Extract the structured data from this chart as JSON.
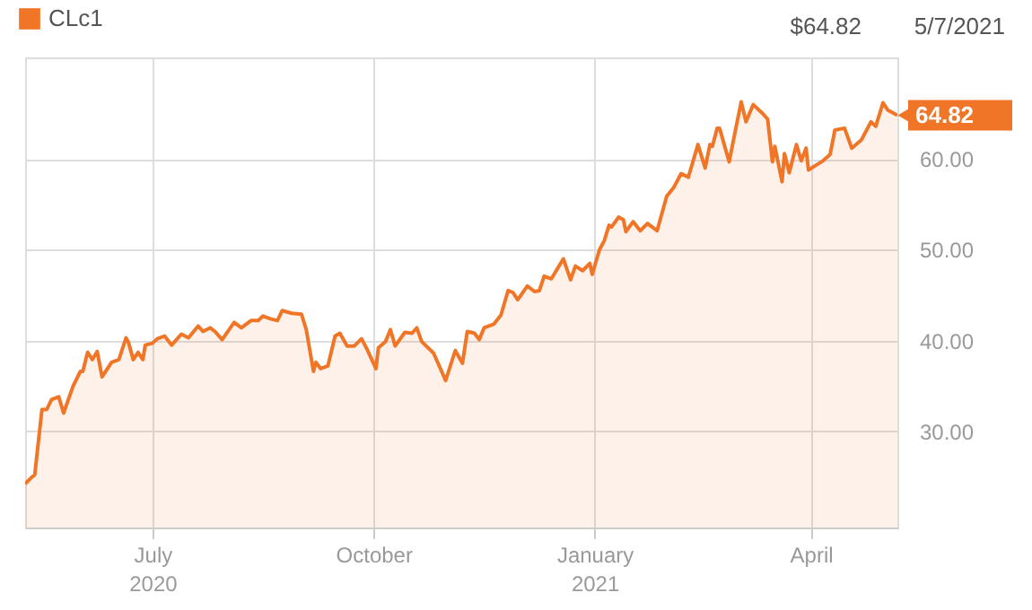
{
  "chart_data": {
    "type": "area",
    "x": [
      "2020-05-09",
      "2020-05-12",
      "2020-05-13",
      "2020-05-16",
      "2020-05-18",
      "2020-05-20",
      "2020-05-23",
      "2020-05-25",
      "2020-05-29",
      "2020-06-01",
      "2020-06-02",
      "2020-06-04",
      "2020-06-06",
      "2020-06-08",
      "2020-06-10",
      "2020-06-14",
      "2020-06-17",
      "2020-06-20",
      "2020-06-21",
      "2020-06-23",
      "2020-06-25",
      "2020-06-27",
      "2020-06-28",
      "2020-07-01",
      "2020-07-03",
      "2020-07-06",
      "2020-07-09",
      "2020-07-13",
      "2020-07-16",
      "2020-07-20",
      "2020-07-22",
      "2020-07-25",
      "2020-07-27",
      "2020-07-30",
      "2020-08-04",
      "2020-08-07",
      "2020-08-11",
      "2020-08-14",
      "2020-08-16",
      "2020-08-19",
      "2020-08-22",
      "2020-08-24",
      "2020-08-28",
      "2020-09-01",
      "2020-09-03",
      "2020-09-06",
      "2020-09-07",
      "2020-09-09",
      "2020-09-12",
      "2020-09-15",
      "2020-09-17",
      "2020-09-20",
      "2020-09-23",
      "2020-09-26",
      "2020-09-28",
      "2020-10-02",
      "2020-10-03",
      "2020-10-06",
      "2020-10-08",
      "2020-10-10",
      "2020-10-14",
      "2020-10-17",
      "2020-10-19",
      "2020-10-21",
      "2020-10-26",
      "2020-10-31",
      "2020-11-04",
      "2020-11-07",
      "2020-11-09",
      "2020-11-12",
      "2020-11-14",
      "2020-11-16",
      "2020-11-20",
      "2020-11-23",
      "2020-11-26",
      "2020-11-28",
      "2020-11-30",
      "2020-12-04",
      "2020-12-07",
      "2020-12-09",
      "2020-12-11",
      "2020-12-14",
      "2020-12-19",
      "2020-12-22",
      "2020-12-24",
      "2020-12-27",
      "2020-12-30",
      "2020-12-31",
      "2021-01-03",
      "2021-01-05",
      "2021-01-07",
      "2021-01-08",
      "2021-01-11",
      "2021-01-13",
      "2021-01-14",
      "2021-01-17",
      "2021-01-20",
      "2021-01-23",
      "2021-01-27",
      "2021-01-31",
      "2021-02-03",
      "2021-02-06",
      "2021-02-09",
      "2021-02-11",
      "2021-02-13",
      "2021-02-16",
      "2021-02-18",
      "2021-02-19",
      "2021-02-21",
      "2021-02-22",
      "2021-02-26",
      "2021-02-28",
      "2021-03-03",
      "2021-03-05",
      "2021-03-08",
      "2021-03-12",
      "2021-03-14",
      "2021-03-16",
      "2021-03-17",
      "2021-03-20",
      "2021-03-21",
      "2021-03-23",
      "2021-03-26",
      "2021-03-28",
      "2021-03-30",
      "2021-03-31",
      "2021-04-03",
      "2021-04-06",
      "2021-04-09",
      "2021-04-11",
      "2021-04-15",
      "2021-04-18",
      "2021-04-22",
      "2021-04-26",
      "2021-04-28",
      "2021-05-01",
      "2021-05-03",
      "2021-05-07"
    ],
    "series": [
      {
        "name": "CLc1",
        "color": "#f07527",
        "values": [
          24.2,
          25.0,
          25.2,
          32.4,
          32.4,
          33.5,
          33.8,
          32.0,
          35.0,
          36.6,
          36.6,
          38.7,
          37.9,
          38.8,
          36.0,
          37.6,
          37.9,
          40.3,
          39.8,
          37.9,
          38.7,
          37.9,
          39.5,
          39.7,
          40.2,
          40.5,
          39.5,
          40.7,
          40.3,
          41.6,
          41.0,
          41.4,
          41.0,
          40.1,
          42.0,
          41.4,
          42.2,
          42.2,
          42.7,
          42.4,
          42.2,
          43.3,
          43.0,
          42.9,
          41.2,
          36.6,
          37.6,
          36.9,
          37.2,
          40.5,
          40.8,
          39.4,
          39.4,
          40.2,
          39.2,
          36.9,
          39.2,
          39.9,
          41.2,
          39.4,
          40.9,
          40.8,
          41.4,
          39.9,
          38.6,
          35.6,
          38.9,
          37.5,
          41.0,
          40.8,
          40.1,
          41.4,
          41.8,
          42.8,
          45.5,
          45.3,
          44.5,
          46.0,
          45.4,
          45.5,
          47.1,
          46.8,
          49.0,
          46.7,
          48.2,
          47.7,
          48.5,
          47.3,
          50.0,
          51.0,
          52.7,
          52.5,
          53.6,
          53.3,
          52.0,
          53.1,
          52.1,
          52.9,
          52.1,
          55.9,
          56.9,
          58.4,
          58.0,
          59.8,
          61.6,
          59.0,
          61.6,
          61.4,
          63.4,
          63.4,
          59.7,
          62.4,
          66.3,
          64.1,
          66.0,
          65.0,
          64.4,
          59.7,
          61.4,
          57.5,
          60.6,
          58.5,
          61.6,
          59.8,
          61.2,
          58.8,
          59.3,
          59.8,
          60.5,
          63.2,
          63.4,
          61.2,
          62.1,
          64.1,
          63.6,
          66.2,
          65.4,
          64.82
        ]
      }
    ],
    "xlim": [
      "2020-05-09",
      "2021-05-07"
    ],
    "xticks": [
      {
        "value": "2020-07-01",
        "label": "July\n2020"
      },
      {
        "value": "2020-10-01",
        "label": "October"
      },
      {
        "value": "2021-01-01",
        "label": "January\n2021"
      },
      {
        "value": "2021-04-01",
        "label": "April"
      }
    ],
    "ylim": [
      19.4,
      71.2
    ],
    "yticks": [
      {
        "value": 30,
        "label": "30.00"
      },
      {
        "value": 40,
        "label": "40.00"
      },
      {
        "value": 50,
        "label": "50.00"
      },
      {
        "value": 60,
        "label": "60.00"
      }
    ],
    "grid": true,
    "legend": "top left",
    "annotations": [
      "$64.82",
      "5/7/2021",
      "64.82"
    ]
  }
}
